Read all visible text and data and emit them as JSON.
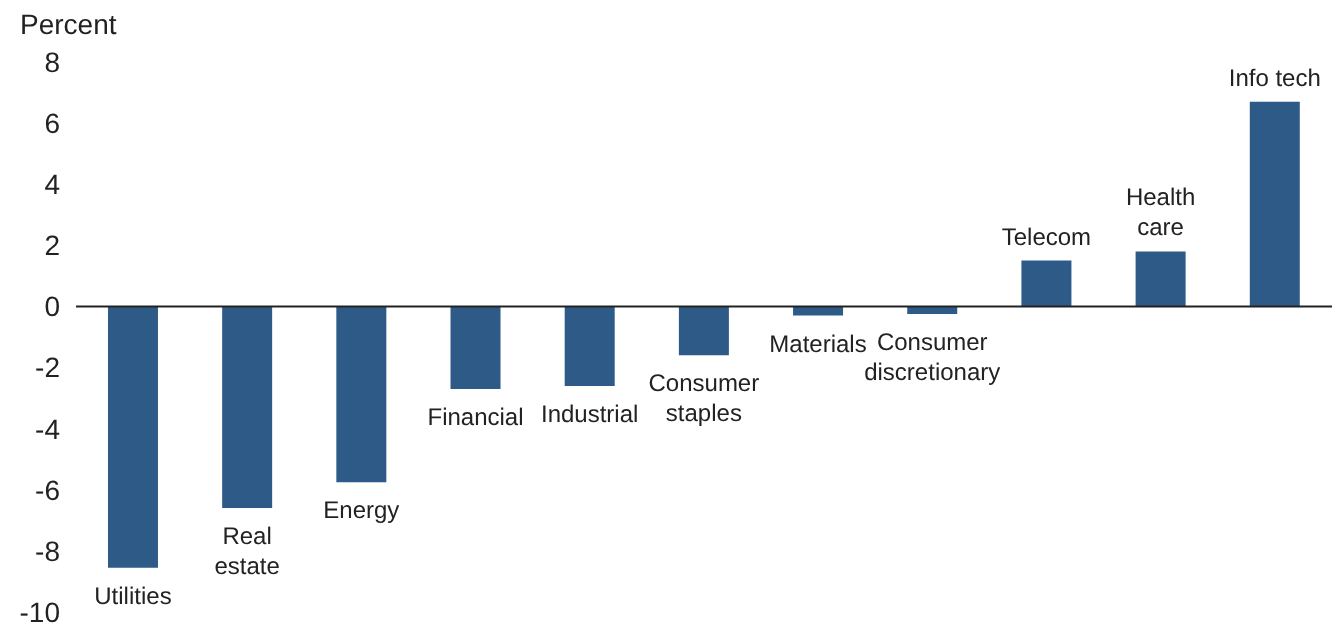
{
  "chart_data": {
    "type": "bar",
    "ylabel": "Percent",
    "categories": [
      "Utilities",
      "Real estate",
      "Energy",
      "Financial",
      "Industrial",
      "Consumer staples",
      "Materials",
      "Consumer discretionary",
      "Telecom",
      "Health care",
      "Info tech"
    ],
    "values": [
      -8.55,
      -6.6,
      -5.75,
      -2.7,
      -2.6,
      -1.6,
      -0.3,
      -0.25,
      1.5,
      1.8,
      6.7
    ],
    "color": "#2e5a88",
    "ylim": [
      -10,
      8
    ],
    "yticks": [
      -10,
      -8,
      -6,
      -4,
      -2,
      0,
      2,
      4,
      6,
      8
    ],
    "grid": false,
    "legend": false
  }
}
